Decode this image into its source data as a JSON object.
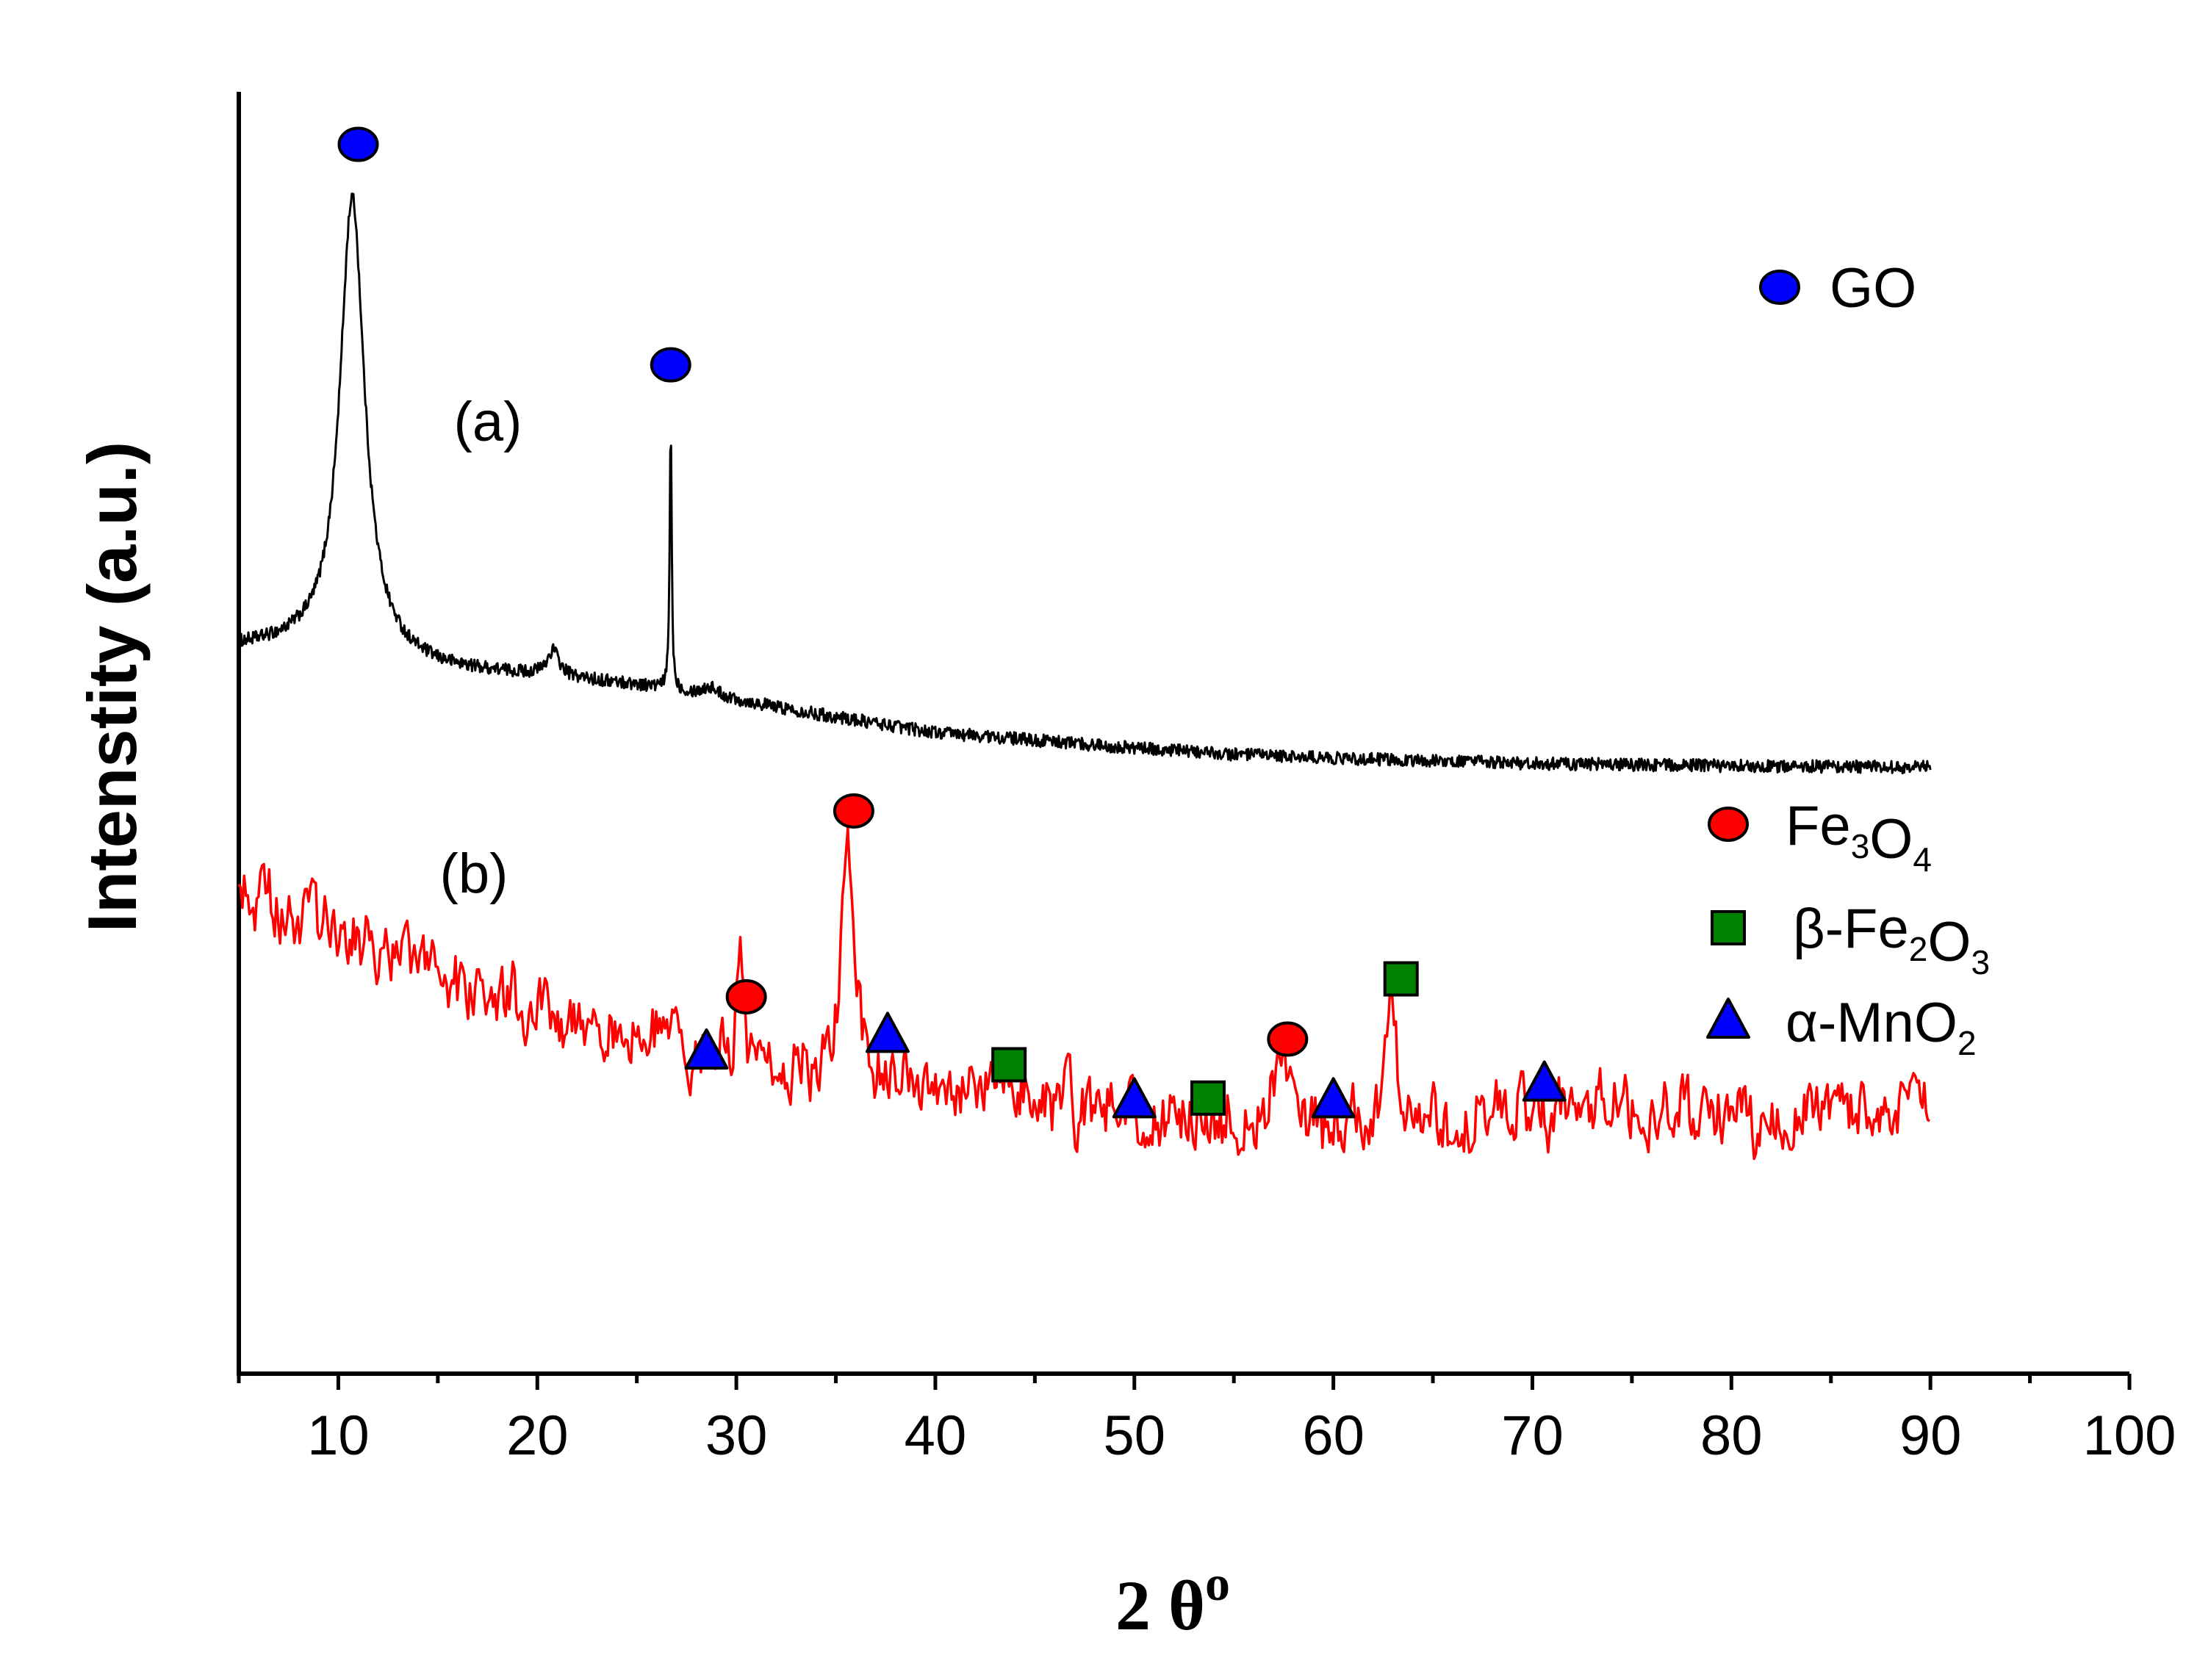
{
  "chart_data": {
    "type": "line",
    "title": "",
    "xlabel": "2 θ",
    "xlabel_sup": "o",
    "ylabel": "Intenstity (a.u.)",
    "xlim": [
      5,
      100
    ],
    "ylim": [
      0,
      100
    ],
    "y_tick_labels_shown": false,
    "x_ticks": [
      10,
      20,
      30,
      40,
      50,
      60,
      70,
      80,
      90,
      100
    ],
    "x_tick_labels": [
      "10",
      "20",
      "30",
      "40",
      "50",
      "60",
      "70",
      "80",
      "90",
      "100"
    ],
    "grid": false,
    "series": [
      {
        "name": "(a)",
        "label": "(a)",
        "color": "#000000",
        "x_range": [
          5,
          90
        ],
        "baseline_points": [
          [
            5,
            56.6
          ],
          [
            8,
            56.6
          ],
          [
            15,
            54.9
          ],
          [
            20,
            54.4
          ],
          [
            25,
            53.7
          ],
          [
            30,
            52.5
          ],
          [
            35,
            51.2
          ],
          [
            40,
            50.0
          ],
          [
            45,
            49.4
          ],
          [
            50,
            48.8
          ],
          [
            55,
            48.3
          ],
          [
            60,
            48.0
          ],
          [
            70,
            47.6
          ],
          [
            80,
            47.4
          ],
          [
            90,
            47.3
          ]
        ],
        "peaks": [
          {
            "x": 10.7,
            "y": 91.8,
            "width": 0.75
          },
          {
            "x": 20.8,
            "y": 56.3,
            "width": 0.35
          },
          {
            "x": 26.7,
            "y": 74.1,
            "width": 0.06
          },
          {
            "x": 28.7,
            "y": 53.5,
            "width": 0.5
          }
        ],
        "noise": 0.5
      },
      {
        "name": "(b)",
        "label": "(b)",
        "color": "#ff0000",
        "x_range": [
          5,
          90
        ],
        "baseline_points": [
          [
            5,
            38.1
          ],
          [
            8,
            35.5
          ],
          [
            12,
            33.3
          ],
          [
            16,
            30.3
          ],
          [
            20,
            28.7
          ],
          [
            25,
            26.1
          ],
          [
            30,
            24.4
          ],
          [
            38,
            22.4
          ],
          [
            45,
            21.2
          ],
          [
            50,
            19.8
          ],
          [
            55,
            20.0
          ],
          [
            60,
            18.9
          ],
          [
            65,
            19.2
          ],
          [
            70,
            20.5
          ],
          [
            75,
            21.3
          ],
          [
            80,
            19.8
          ],
          [
            85,
            20.3
          ],
          [
            90,
            20.3
          ]
        ],
        "peaks": [
          {
            "x": 30.2,
            "y": 31.4,
            "width": 0.28
          },
          {
            "x": 35.6,
            "y": 42.3,
            "width": 0.35
          },
          {
            "x": 43.9,
            "y": 24.5,
            "width": 0.3
          },
          {
            "x": 57.4,
            "y": 26.7,
            "width": 0.3
          },
          {
            "x": 62.9,
            "y": 28.7,
            "width": 0.3
          }
        ],
        "noise": 2.0
      }
    ],
    "markers": [
      {
        "phase": "GO",
        "shape": "circle",
        "color": "#0000ff",
        "x": 11.0,
        "y": 95.9
      },
      {
        "phase": "GO",
        "shape": "circle",
        "color": "#0000ff",
        "x": 26.7,
        "y": 78.7
      },
      {
        "phase": "Fe3O4",
        "shape": "circle",
        "color": "#ff0000",
        "x": 35.9,
        "y": 43.9
      },
      {
        "phase": "Fe3O4",
        "shape": "circle",
        "color": "#ff0000",
        "x": 30.5,
        "y": 29.4
      },
      {
        "phase": "Fe3O4",
        "shape": "circle",
        "color": "#ff0000",
        "x": 57.7,
        "y": 26.1
      },
      {
        "phase": "β-Fe2O3",
        "shape": "square",
        "color": "#008000",
        "x": 43.7,
        "y": 24.1
      },
      {
        "phase": "β-Fe2O3",
        "shape": "square",
        "color": "#008000",
        "x": 53.7,
        "y": 21.5
      },
      {
        "phase": "β-Fe2O3",
        "shape": "square",
        "color": "#008000",
        "x": 63.4,
        "y": 30.8
      },
      {
        "phase": "α-MnO2",
        "shape": "triangle",
        "color": "#0000ff",
        "x": 28.5,
        "y": 25.1
      },
      {
        "phase": "α-MnO2",
        "shape": "triangle",
        "color": "#0000ff",
        "x": 37.6,
        "y": 26.4
      },
      {
        "phase": "α-MnO2",
        "shape": "triangle",
        "color": "#0000ff",
        "x": 50.0,
        "y": 21.3
      },
      {
        "phase": "α-MnO2",
        "shape": "triangle",
        "color": "#0000ff",
        "x": 60.0,
        "y": 21.3
      },
      {
        "phase": "α-MnO2",
        "shape": "triangle",
        "color": "#0000ff",
        "x": 70.6,
        "y": 22.6
      }
    ],
    "legend": [
      {
        "shape": "circle",
        "color": "#0000ff",
        "label": "GO",
        "parts": [
          [
            "GO",
            ""
          ]
        ]
      },
      {
        "shape": "circle",
        "color": "#ff0000",
        "label": "Fe3O4",
        "parts": [
          [
            "Fe",
            "3"
          ],
          [
            "O",
            "4"
          ]
        ]
      },
      {
        "shape": "square",
        "color": "#008000",
        "label": "β-Fe2O3",
        "parts": [
          [
            "β-Fe",
            "2"
          ],
          [
            "O",
            "3"
          ]
        ]
      },
      {
        "shape": "triangle",
        "color": "#0000ff",
        "label": "α-MnO2",
        "parts": [
          [
            "α-MnO",
            "2"
          ]
        ]
      }
    ]
  }
}
